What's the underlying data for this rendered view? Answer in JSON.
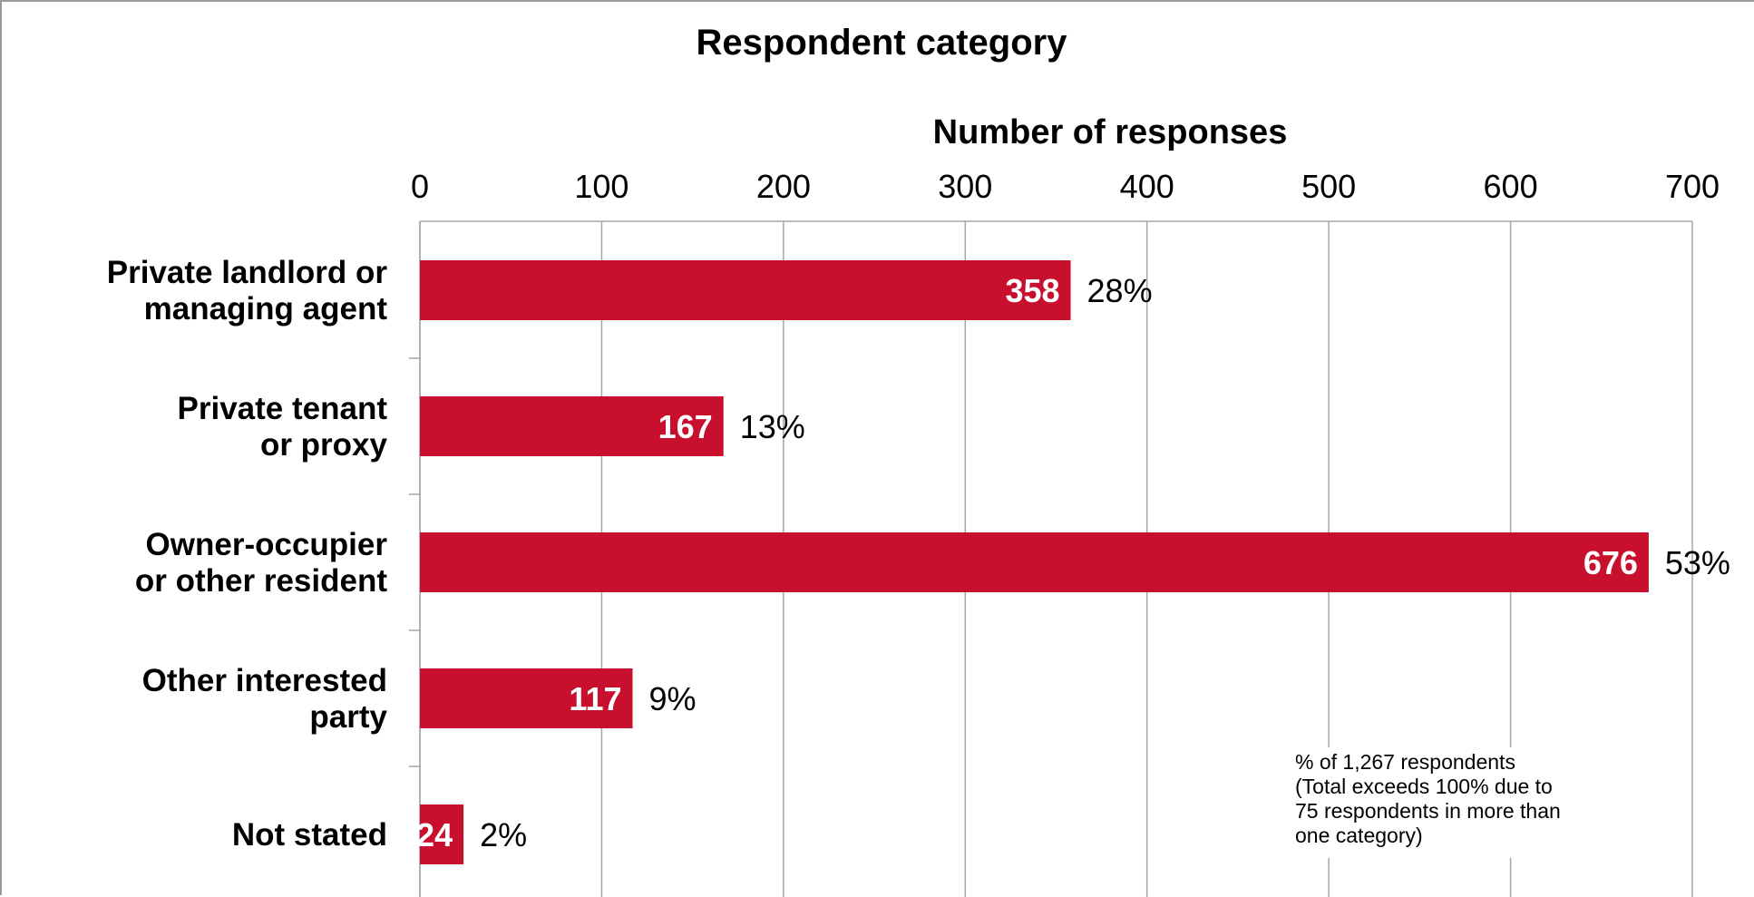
{
  "chart_data": {
    "type": "bar",
    "orientation": "horizontal",
    "title": "Respondent category",
    "xlabel": "Number of responses",
    "xlim": [
      0,
      700
    ],
    "xticks": [
      "0",
      "100",
      "200",
      "300",
      "400",
      "500",
      "600",
      "700"
    ],
    "grid": true,
    "categories": [
      [
        "Private landlord or",
        "managing agent"
      ],
      [
        "Private tenant",
        "or proxy"
      ],
      [
        "Owner-occupier",
        "or other resident"
      ],
      [
        "Other interested",
        "party"
      ],
      [
        "Not stated"
      ]
    ],
    "values": [
      358,
      167,
      676,
      117,
      24
    ],
    "percent_labels": [
      "28%",
      "13%",
      "53%",
      "9%",
      "2%"
    ],
    "bar_color": "#c8102e",
    "note": [
      "% of 1,267 respondents",
      "(Total exceeds 100% due to",
      "75 respondents in more than",
      "one category)"
    ]
  }
}
